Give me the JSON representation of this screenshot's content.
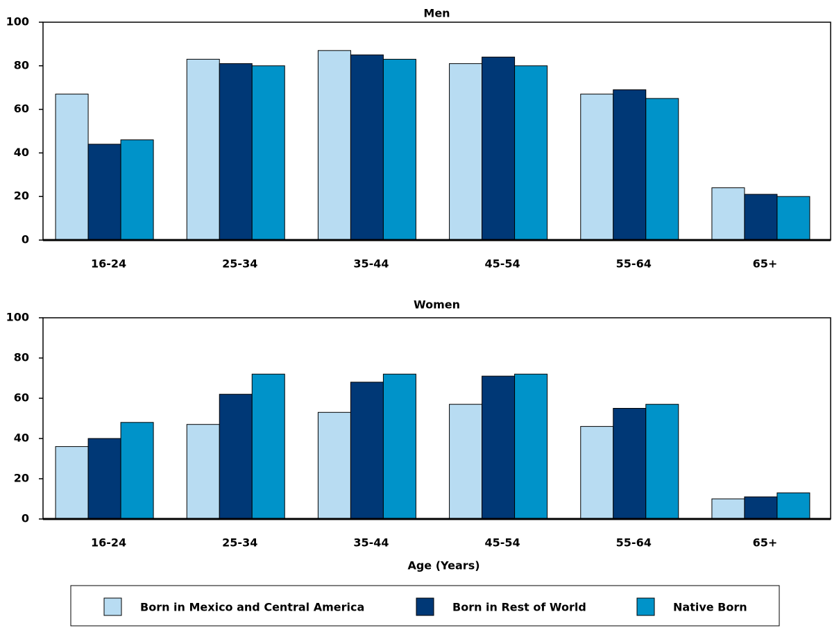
{
  "chart_data": [
    {
      "type": "bar",
      "title": "Men",
      "categories": [
        "16-24",
        "25-34",
        "35-44",
        "45-54",
        "55-64",
        "65+"
      ],
      "series": [
        {
          "name": "Born in Mexico and Central America",
          "color": "#b8dcf2",
          "values": [
            67,
            83,
            87,
            81,
            67,
            24
          ]
        },
        {
          "name": "Born in Rest of World",
          "color": "#003876",
          "values": [
            44,
            81,
            85,
            84,
            69,
            21
          ]
        },
        {
          "name": "Native Born",
          "color": "#0093c9",
          "values": [
            46,
            80,
            83,
            80,
            65,
            20
          ]
        }
      ],
      "ylim": [
        0,
        100
      ],
      "yticks": [
        0,
        20,
        40,
        60,
        80,
        100
      ]
    },
    {
      "type": "bar",
      "title": "Women",
      "x_label": "Age (Years)",
      "categories": [
        "16-24",
        "25-34",
        "35-44",
        "45-54",
        "55-64",
        "65+"
      ],
      "series": [
        {
          "values": [
            36,
            47,
            53,
            57,
            46,
            10
          ]
        },
        {
          "values": [
            40,
            62,
            68,
            71,
            55,
            11
          ]
        },
        {
          "values": [
            48,
            72,
            72,
            72,
            57,
            13
          ]
        }
      ],
      "ylim": [
        0,
        100
      ],
      "yticks": [
        0,
        20,
        40,
        60,
        80,
        100
      ]
    }
  ]
}
